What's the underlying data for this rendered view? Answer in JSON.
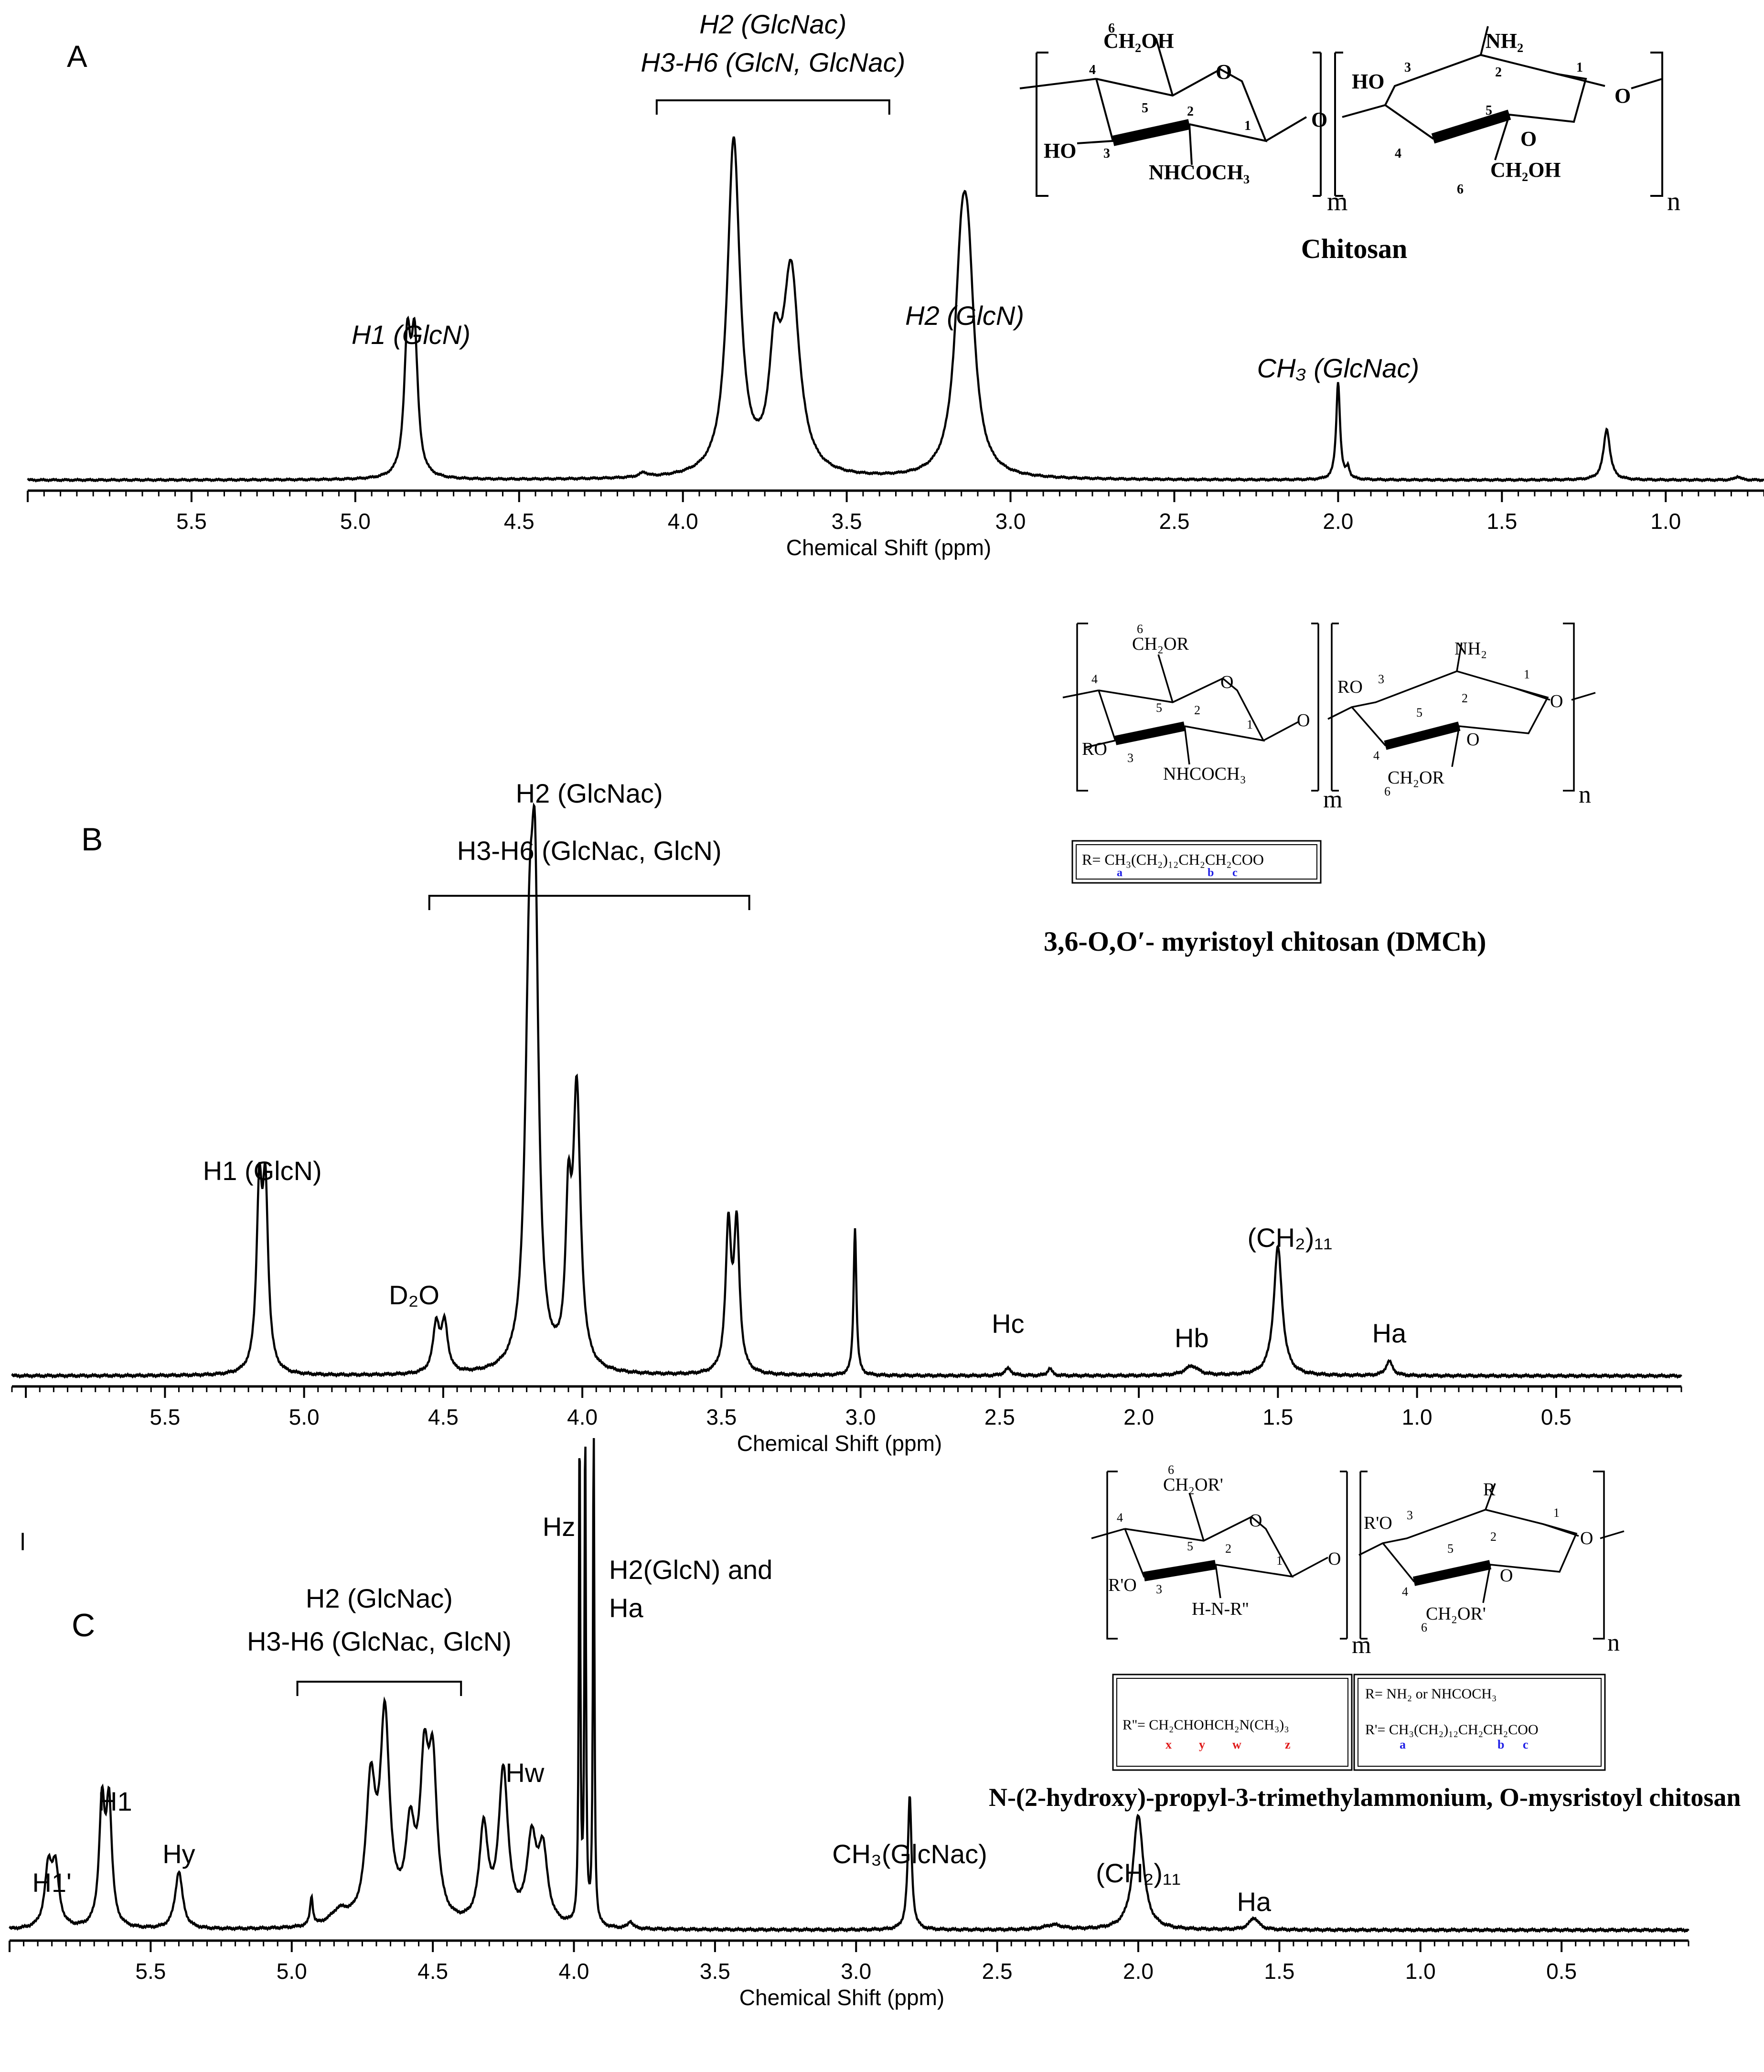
{
  "chart_data": [
    {
      "type": "line",
      "panel_label": "A",
      "xlabel": "Chemical Shift (ppm)",
      "xlim": [
        6.0,
        0.7
      ],
      "x_ticks": [
        "5.5",
        "5.0",
        "4.5",
        "4.0",
        "3.5",
        "3.0",
        "2.5",
        "2.0",
        "1.5",
        "1.0"
      ],
      "peaks": [
        {
          "x": 4.83,
          "y": 0.36,
          "w": 0.012,
          "split": 0.022
        },
        {
          "x": 4.12,
          "y": 0.012,
          "w": 0.015
        },
        {
          "x": 3.845,
          "y": 0.92,
          "w": 0.023
        },
        {
          "x": 3.72,
          "y": 0.28,
          "w": 0.02
        },
        {
          "x": 3.67,
          "y": 0.55,
          "w": 0.03
        },
        {
          "x": 3.14,
          "y": 0.46,
          "w": 0.025,
          "split": 0.02
        },
        {
          "x": 2.0,
          "y": 0.27,
          "w": 0.007
        },
        {
          "x": 1.97,
          "y": 0.03,
          "w": 0.006
        },
        {
          "x": 1.18,
          "y": 0.14,
          "w": 0.012
        },
        {
          "x": 0.78,
          "y": 0.01,
          "w": 0.01
        }
      ],
      "annotations": [
        {
          "text": "H1 (GlcN)",
          "x": 4.83
        },
        {
          "text": "H2 (GlcN)",
          "x": 3.14
        },
        {
          "text": "CH₃ (GlcNac)",
          "x": 2.0
        }
      ],
      "bracket": {
        "x0": 4.08,
        "x1": 3.37,
        "lines": [
          "H2 (GlcNac)",
          "H3-H6 (GlcN, GlcNac)"
        ]
      },
      "structure_title": "Chitosan"
    },
    {
      "type": "line",
      "panel_label": "B",
      "xlabel": "Chemical Shift (ppm)",
      "xlim": [
        6.05,
        0.05
      ],
      "x_ticks": [
        "5.5",
        "5.0",
        "4.5",
        "4.0",
        "3.5",
        "3.0",
        "2.5",
        "2.0",
        "1.5",
        "1.0",
        "0.5"
      ],
      "peaks": [
        {
          "x": 5.15,
          "y": 0.36,
          "w": 0.012,
          "split": 0.022
        },
        {
          "x": 4.51,
          "y": 0.1,
          "w": 0.014,
          "split": 0.03
        },
        {
          "x": 4.19,
          "y": 0.75,
          "w": 0.018
        },
        {
          "x": 4.17,
          "y": 0.82,
          "w": 0.015
        },
        {
          "x": 4.05,
          "y": 0.3,
          "w": 0.012
        },
        {
          "x": 4.02,
          "y": 0.57,
          "w": 0.016
        },
        {
          "x": 3.46,
          "y": 0.3,
          "w": 0.012,
          "split": 0.03
        },
        {
          "x": 3.02,
          "y": 0.31,
          "w": 0.006
        },
        {
          "x": 2.47,
          "y": 0.015,
          "w": 0.015
        },
        {
          "x": 2.32,
          "y": 0.015,
          "w": 0.01
        },
        {
          "x": 1.81,
          "y": 0.02,
          "w": 0.03
        },
        {
          "x": 1.5,
          "y": 0.27,
          "w": 0.018
        },
        {
          "x": 1.1,
          "y": 0.03,
          "w": 0.015
        }
      ],
      "annotations": [
        {
          "text": "H1 (GlcN)",
          "x": 5.15
        },
        {
          "text": "D₂O",
          "x": 4.51
        },
        {
          "text": "Hc",
          "x": 2.47
        },
        {
          "text": "Hb",
          "x": 1.81
        },
        {
          "text": "(CH₂)₁₁",
          "x": 1.5
        },
        {
          "text": "Ha",
          "x": 1.1
        }
      ],
      "bracket": {
        "x0": 4.55,
        "x1": 3.4,
        "lines": [
          "H2 (GlcNac)",
          "H3-H6 (GlcNac, GlcN)"
        ]
      },
      "structure_title": "3,6-O,O′- myristoyl chitosan (DMCh)",
      "r_group": "R= CH₃(CH₂)₁₂CH₂CH₂COO"
    },
    {
      "type": "line",
      "panel_label": "C",
      "xlabel": "Chemical Shift (ppm)",
      "xlim": [
        6.0,
        0.05
      ],
      "x_ticks": [
        "5.5",
        "5.0",
        "4.5",
        "4.0",
        "3.5",
        "3.0",
        "2.5",
        "2.0",
        "1.5",
        "1.0",
        "0.5"
      ],
      "peaks": [
        {
          "x": 5.85,
          "y": 0.12,
          "w": 0.015,
          "split": 0.025
        },
        {
          "x": 5.66,
          "y": 0.25,
          "w": 0.012,
          "split": 0.025
        },
        {
          "x": 5.4,
          "y": 0.12,
          "w": 0.016
        },
        {
          "x": 4.93,
          "y": 0.06,
          "w": 0.006
        },
        {
          "x": 4.83,
          "y": 0.03,
          "w": 0.04
        },
        {
          "x": 4.72,
          "y": 0.28,
          "w": 0.02
        },
        {
          "x": 4.67,
          "y": 0.42,
          "w": 0.02
        },
        {
          "x": 4.58,
          "y": 0.18,
          "w": 0.02
        },
        {
          "x": 4.53,
          "y": 0.3,
          "w": 0.018
        },
        {
          "x": 4.5,
          "y": 0.3,
          "w": 0.018
        },
        {
          "x": 4.32,
          "y": 0.2,
          "w": 0.018
        },
        {
          "x": 4.25,
          "y": 0.32,
          "w": 0.02
        },
        {
          "x": 4.15,
          "y": 0.17,
          "w": 0.02
        },
        {
          "x": 4.11,
          "y": 0.15,
          "w": 0.02
        },
        {
          "x": 3.98,
          "y": 1.05,
          "w": 0.003
        },
        {
          "x": 3.96,
          "y": 1.05,
          "w": 0.003
        },
        {
          "x": 3.93,
          "y": 1.05,
          "w": 0.003
        },
        {
          "x": 3.8,
          "y": 0.015,
          "w": 0.01
        },
        {
          "x": 2.81,
          "y": 0.28,
          "w": 0.008
        },
        {
          "x": 2.3,
          "y": 0.01,
          "w": 0.04
        },
        {
          "x": 2.0,
          "y": 0.24,
          "w": 0.022
        },
        {
          "x": 1.59,
          "y": 0.025,
          "w": 0.02
        }
      ],
      "annotations": [
        {
          "text": "H1'",
          "x": 5.85
        },
        {
          "text": "H1",
          "x": 5.66
        },
        {
          "text": "Hy",
          "x": 5.4
        },
        {
          "text": "Hw",
          "x": 4.25
        },
        {
          "text": "Hz",
          "x": 3.96
        },
        {
          "text": "CH₃(GlcNac)",
          "x": 2.81
        },
        {
          "text": "(CH₂)₁₁",
          "x": 2.0
        },
        {
          "text": "Ha",
          "x": 1.59
        }
      ],
      "label_h2": [
        "H2(GlcN)  and",
        "Ha"
      ],
      "bracket": {
        "x0": 4.98,
        "x1": 4.4,
        "lines": [
          "H2 (GlcNac)",
          "H3-H6 (GlcNac, GlcN)"
        ]
      },
      "structure_title": "N-(2-hydroxy)-propyl-3-trimethylammonium, O-mysristoyl chitosan",
      "r_groups": [
        "R''= CH₂CHOHCH₂N(CH₃)₃",
        "R= NH₂ or NHCOCH₃",
        "R'= CH₃(CH₂)₁₂CH₂CH₂COO"
      ]
    }
  ],
  "structure_text": {
    "a": {
      "ch2oh_top": "CH₂OH",
      "ho_left": "HO",
      "nhcoch3": "NHCOCH₃",
      "nh2": "NH₂",
      "ho_right": "HO",
      "ch2oh_bottom": "CH₂OH",
      "m": "m",
      "n": "n"
    },
    "b": {
      "ch2or_top": "CH₂OR",
      "ro_left": "RO",
      "nhcoch3": "NHCOCH₃",
      "nh2": "NH₂",
      "ro_right": "RO",
      "ch2or_bottom": "CH₂OR",
      "m": "m",
      "n": "n"
    },
    "c": {
      "ch2or_top": "CH₂OR'",
      "ro_left": "R'O",
      "hnr": "H-N-R''",
      "r": "R",
      "ro_right": "R'O",
      "ch2or_bottom": "CH₂OR'",
      "m": "m",
      "n": "n"
    },
    "o": "O",
    "atoms": [
      "1",
      "2",
      "3",
      "4",
      "5",
      "6"
    ],
    "markers": [
      "a",
      "b",
      "c",
      "x",
      "y",
      "w",
      "z"
    ],
    "stray_mark": "l"
  },
  "colors": {
    "line": "#000000",
    "marker_blue": "#1f1fe6",
    "marker_red": "#e01a1a"
  }
}
